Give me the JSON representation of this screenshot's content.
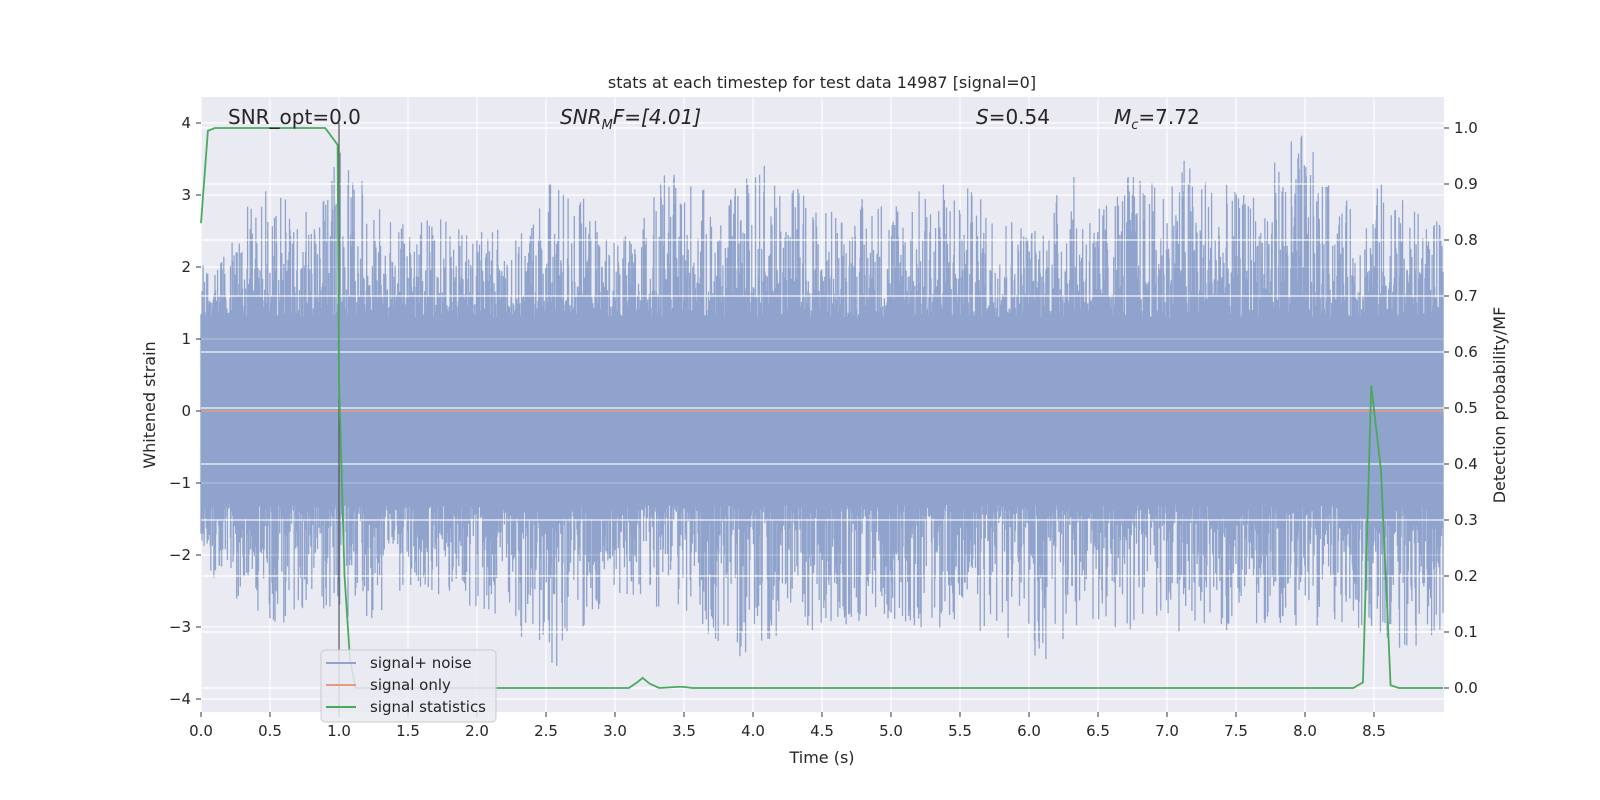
{
  "chart_data": {
    "type": "line",
    "title": "stats at each timestep for test data 14987 [signal=0]",
    "xlabel": "Time (s)",
    "ylabel_left": "Whitened strain",
    "ylabel_right": "Detection probability/MF",
    "xlim": [
      0,
      9.0
    ],
    "ylim_left": [
      -4.2,
      4.4
    ],
    "ylim_right": [
      -0.05,
      1.05
    ],
    "xticks": [
      "0.0",
      "0.5",
      "1.0",
      "1.5",
      "2.0",
      "2.5",
      "3.0",
      "3.5",
      "4.0",
      "4.5",
      "5.0",
      "5.5",
      "6.0",
      "6.5",
      "7.0",
      "7.5",
      "8.0",
      "8.5"
    ],
    "yticks_left": [
      "4",
      "3",
      "2",
      "1",
      "0",
      "−1",
      "−2",
      "−3",
      "−4"
    ],
    "yticks_right": [
      "1.0",
      "0.9",
      "0.8",
      "0.7",
      "0.6",
      "0.5",
      "0.4",
      "0.3",
      "0.2",
      "0.1",
      "0.0"
    ],
    "grid": true,
    "annotations": {
      "snr_opt": "SNR_opt=0.0",
      "snr_mf_label": "SNR",
      "snr_mf_sub": "M",
      "snr_mf_rest": "F=[4.01]",
      "s_label": "S",
      "s_rest": "=0.54",
      "mc_label": "M",
      "mc_sub": "c",
      "mc_rest": "=7.72"
    },
    "vertical_marker_x": 1.0,
    "series": [
      {
        "name": "signal+ noise",
        "axis": "left",
        "color": "#8fa3cc",
        "description_envelope_upper": [
          2.0,
          2.5,
          3.1,
          3.0,
          2.8,
          3.8,
          2.9,
          2.6,
          2.8,
          2.5,
          2.7,
          2.4,
          3.3,
          3.1,
          2.5,
          2.4,
          3.3,
          3.3,
          2.8,
          3.4,
          3.5,
          3.0,
          2.8,
          3.0,
          3.1,
          3.1,
          3.3,
          3.0,
          2.8,
          2.6,
          3.4,
          2.8,
          3.4,
          3.2,
          3.6,
          3.3,
          3.0,
          3.4,
          4.0,
          3.2,
          2.8,
          3.3,
          2.8,
          2.6
        ],
        "description_envelope_lower": [
          -2.2,
          -2.5,
          -3.2,
          -2.9,
          -2.7,
          -2.9,
          -3.0,
          -2.6,
          -2.5,
          -2.7,
          -2.8,
          -3.1,
          -3.7,
          -3.2,
          -2.7,
          -2.6,
          -2.8,
          -2.9,
          -3.4,
          -3.8,
          -3.1,
          -3.2,
          -3.1,
          -3.0,
          -2.9,
          -3.1,
          -3.0,
          -3.1,
          -3.2,
          -3.6,
          -3.2,
          -3.0,
          -3.1,
          -2.9,
          -3.1,
          -3.2,
          -3.0,
          -3.0,
          -3.0,
          -3.1,
          -3.0,
          -3.2,
          -3.4,
          -3.0
        ]
      },
      {
        "name": "signal only",
        "axis": "left",
        "color": "#e99a7e",
        "x": [
          0,
          9.0
        ],
        "y": [
          0,
          0
        ]
      },
      {
        "name": "signal statistics",
        "axis": "right",
        "color": "#4ba95e",
        "x": [
          0,
          0.05,
          0.1,
          0.9,
          0.99,
          1.0,
          1.04,
          1.08,
          1.12,
          1.2,
          1.3,
          3.1,
          3.16,
          3.2,
          3.25,
          3.32,
          3.45,
          3.5,
          3.56,
          3.62,
          8.35,
          8.42,
          8.48,
          8.55,
          8.6,
          8.62,
          8.68,
          8.75,
          9.0
        ],
        "y": [
          0.83,
          0.995,
          1.0,
          1.0,
          0.97,
          0.55,
          0.2,
          0.05,
          0.0,
          0.0,
          0.0,
          0.0,
          0.01,
          0.018,
          0.008,
          0.0,
          0.002,
          0.002,
          0.0,
          0.0,
          0.0,
          0.01,
          0.54,
          0.39,
          0.12,
          0.005,
          0.0,
          0.0,
          0.0
        ]
      }
    ],
    "legend": {
      "placement": "lower-left",
      "entries": [
        "signal+ noise",
        "signal only",
        "signal statistics"
      ]
    }
  },
  "colors": {
    "plot_bg": "#eaeaf2",
    "grid": "#ffffff",
    "noise": "#8fa3cc",
    "signal_only": "#e99a7e",
    "statistics": "#4ba95e",
    "marker": "#555555"
  }
}
